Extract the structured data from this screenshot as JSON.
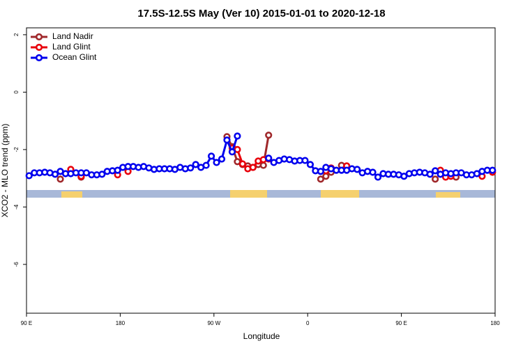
{
  "chart_data": {
    "type": "line",
    "title": "17.5S-12.5S May (Ver 10)   2015-01-01 to 2020-12-18",
    "xlabel": "Longitude",
    "ylabel": "XCO2 - MLO trend (ppm)",
    "xlim": [
      90,
      540
    ],
    "ylim": [
      -7.7,
      2.24
    ],
    "xticks": [
      {
        "value": 90,
        "label": "90 E"
      },
      {
        "value": 180,
        "label": "180"
      },
      {
        "value": 270,
        "label": "90 W"
      },
      {
        "value": 360,
        "label": "0"
      },
      {
        "value": 450,
        "label": "90 E"
      },
      {
        "value": 540,
        "label": "180"
      }
    ],
    "yticks": [
      2,
      0,
      -2,
      -4,
      -6
    ],
    "legend": "top-left",
    "x": [
      92.5,
      97.5,
      102.5,
      107.5,
      112.5,
      117.5,
      122.5,
      127.5,
      132.5,
      137.5,
      142.5,
      147.5,
      152.5,
      157.5,
      162.5,
      167.5,
      172.5,
      177.5,
      182.5,
      187.5,
      192.5,
      197.5,
      202.5,
      207.5,
      212.5,
      217.5,
      222.5,
      227.5,
      232.5,
      237.5,
      242.5,
      247.5,
      252.5,
      257.5,
      262.5,
      267.5,
      272.5,
      277.5,
      282.5,
      287.5,
      292.5,
      297.5,
      302.5,
      307.5,
      312.5,
      317.5,
      322.5,
      327.5,
      332.5,
      337.5,
      342.5,
      347.5,
      352.5,
      357.5,
      362.5,
      367.5,
      372.5,
      377.5,
      382.5,
      387.5,
      392.5,
      397.5,
      402.5,
      407.5,
      412.5,
      417.5,
      422.5,
      427.5,
      432.5,
      437.5,
      442.5,
      447.5,
      452.5,
      457.5,
      462.5,
      467.5,
      472.5,
      477.5,
      482.5,
      487.5,
      492.5,
      497.5,
      502.5,
      507.5,
      512.5,
      517.5,
      522.5,
      527.5,
      532.5,
      537.5
    ],
    "series": [
      {
        "name": "Land Nadir",
        "color": "#a0282b",
        "values": [
          null,
          null,
          null,
          null,
          null,
          null,
          -3.03,
          null,
          null,
          null,
          -2.96,
          null,
          null,
          null,
          null,
          null,
          null,
          null,
          null,
          null,
          null,
          null,
          null,
          null,
          null,
          null,
          null,
          null,
          null,
          null,
          null,
          null,
          null,
          null,
          null,
          null,
          null,
          null,
          -1.55,
          -1.9,
          -2.42,
          -2.52,
          -2.57,
          -2.62,
          -2.52,
          -2.55,
          -1.5,
          null,
          null,
          null,
          null,
          null,
          null,
          null,
          null,
          null,
          -3.03,
          -2.93,
          -2.79,
          null,
          -2.55,
          -2.6,
          null,
          null,
          null,
          null,
          null,
          null,
          null,
          null,
          null,
          null,
          null,
          null,
          null,
          null,
          null,
          null,
          -3.03,
          null,
          null,
          null,
          -2.96,
          null,
          null,
          null,
          null,
          null,
          null,
          null
        ]
      },
      {
        "name": "Land Glint",
        "color": "#e8000b",
        "values": [
          null,
          null,
          null,
          null,
          null,
          null,
          null,
          null,
          -2.69,
          null,
          -2.93,
          null,
          null,
          null,
          null,
          null,
          null,
          -2.88,
          null,
          -2.76,
          null,
          null,
          null,
          null,
          null,
          null,
          null,
          null,
          null,
          null,
          null,
          null,
          null,
          null,
          null,
          null,
          null,
          null,
          null,
          -1.95,
          -2.0,
          -2.5,
          -2.67,
          -2.62,
          -2.4,
          -2.35,
          -2.33,
          null,
          null,
          null,
          null,
          null,
          null,
          null,
          null,
          null,
          null,
          -2.74,
          -2.64,
          null,
          null,
          -2.57,
          null,
          null,
          null,
          null,
          null,
          null,
          null,
          null,
          null,
          null,
          null,
          null,
          null,
          null,
          null,
          null,
          null,
          -2.72,
          -2.96,
          -2.93,
          null,
          null,
          null,
          null,
          null,
          -2.93,
          null,
          -2.79
        ]
      },
      {
        "name": "Ocean Glint",
        "color": "#0000ee",
        "values": [
          -2.91,
          -2.81,
          -2.81,
          -2.79,
          -2.81,
          -2.86,
          -2.76,
          -2.84,
          -2.84,
          -2.81,
          -2.81,
          -2.81,
          -2.88,
          -2.88,
          -2.86,
          -2.76,
          -2.74,
          -2.72,
          -2.62,
          -2.59,
          -2.59,
          -2.62,
          -2.59,
          -2.64,
          -2.69,
          -2.67,
          -2.67,
          -2.67,
          -2.69,
          -2.62,
          -2.67,
          -2.64,
          -2.52,
          -2.62,
          -2.55,
          -2.23,
          -2.45,
          -2.33,
          -1.67,
          -2.08,
          -1.53,
          null,
          null,
          null,
          null,
          null,
          -2.3,
          -2.45,
          -2.38,
          -2.33,
          -2.35,
          -2.4,
          -2.38,
          -2.38,
          -2.52,
          -2.74,
          -2.76,
          -2.62,
          -2.67,
          -2.72,
          -2.72,
          -2.72,
          -2.67,
          -2.69,
          -2.81,
          -2.76,
          -2.79,
          -2.96,
          -2.84,
          -2.86,
          -2.86,
          -2.88,
          -2.93,
          -2.84,
          -2.81,
          -2.79,
          -2.81,
          -2.86,
          -2.74,
          -2.86,
          -2.81,
          -2.84,
          -2.81,
          -2.81,
          -2.88,
          -2.88,
          -2.84,
          -2.76,
          -2.72,
          -2.72
        ]
      }
    ]
  }
}
